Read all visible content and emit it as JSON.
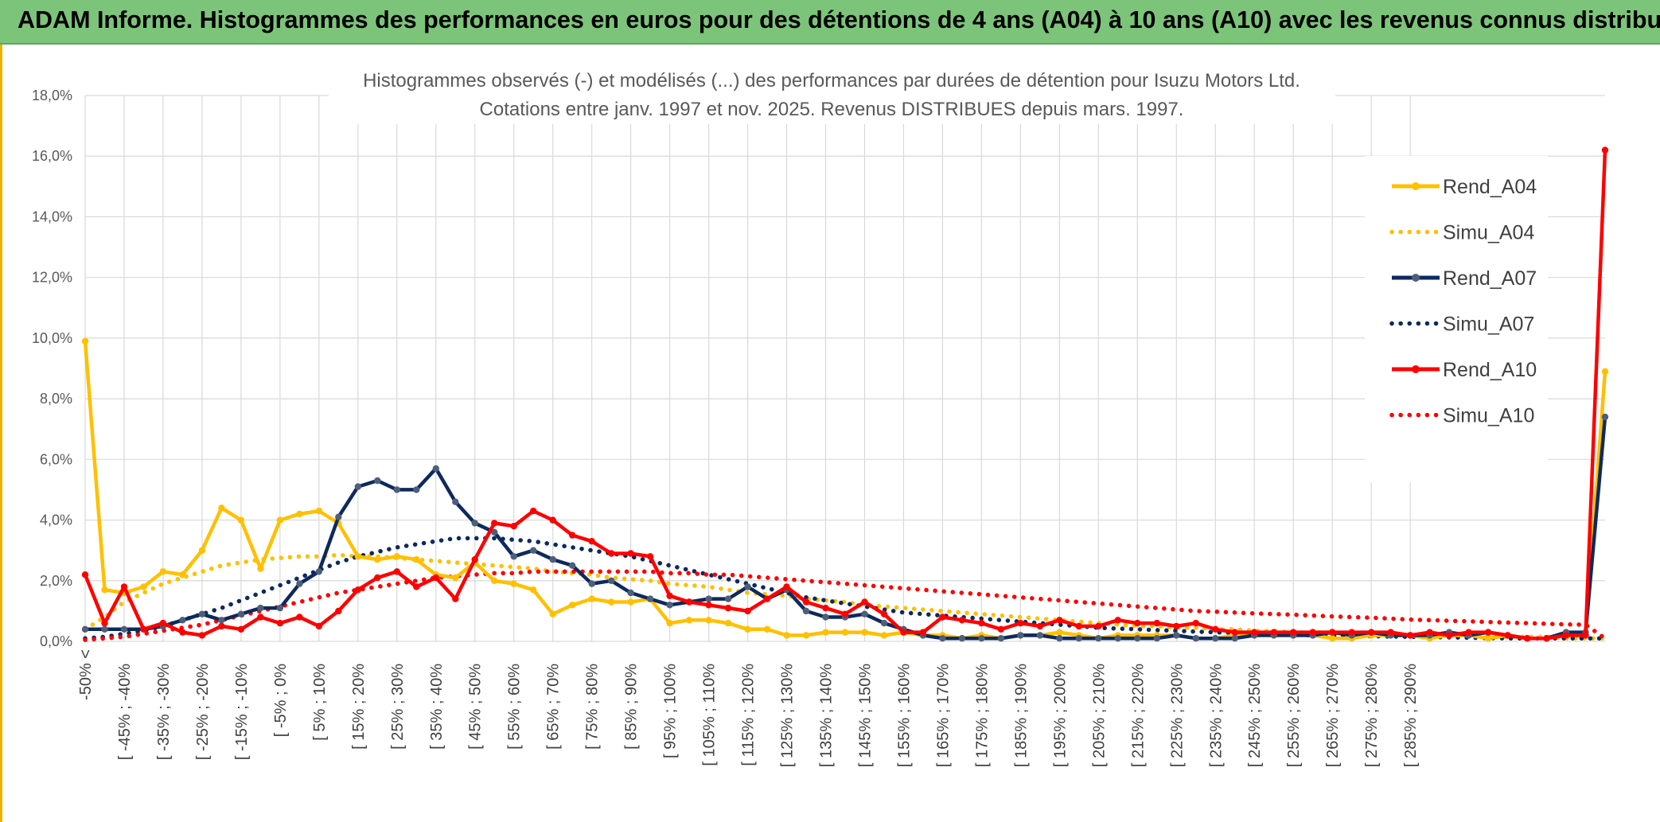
{
  "banner": {
    "title": "ADAM Informe. Histogrammes des performances en euros pour des détentions de 4 ans (A04) à 10 ans (A10) avec les revenus connus distribués"
  },
  "colors": {
    "banner_bg": "#7cc47a",
    "a04": "#ffc000",
    "a07": "#0d2a5e",
    "a07_marker": "#4d5f7a",
    "a10": "#ff0000",
    "grid": "#d9d9d9",
    "axis_text": "#595959"
  },
  "chart_data": {
    "type": "line",
    "title_line1": "Histogrammes observés (-) et modélisés (...) des performances par durées de détention pour Isuzu Motors Ltd.",
    "title_line2": "Cotations entre janv. 1997 et nov. 2025. Revenus DISTRIBUES depuis mars. 1997.",
    "xlabel": "",
    "ylabel": "",
    "ylim": [
      0,
      18
    ],
    "y_ticks": [
      "0,0%",
      "2,0%",
      "4,0%",
      "6,0%",
      "8,0%",
      "10,0%",
      "12,0%",
      "14,0%",
      "16,0%",
      "18,0%"
    ],
    "grid": true,
    "legend_position": "right",
    "x_labels": [
      "-50% <",
      "[ -45% ; -40%",
      "[ -35% ; -30%",
      "[ -25% ; -20%",
      "[ -15% ; -10%",
      "[ -5% ; 0%",
      "[ 5% ; 10%",
      "[ 15% ; 20%",
      "[ 25% ; 30%",
      "[ 35% ; 40%",
      "[ 45% ; 50%",
      "[ 55% ; 60%",
      "[ 65% ; 70%",
      "[ 75% ; 80%",
      "[ 85% ; 90%",
      "[ 95% ; 100%",
      "[ 105% ; 110%",
      "[ 115% ; 120%",
      "[ 125% ; 130%",
      "[ 135% ; 140%",
      "[ 145% ; 150%",
      "[ 155% ; 160%",
      "[ 165% ; 170%",
      "[ 175% ; 180%",
      "[ 185% ; 190%",
      "[ 195% ; 200%",
      "[ 205% ; 210%",
      "[ 215% ; 220%",
      "[ 225% ; 230%",
      "[ 235% ; 240%",
      "[ 245% ; 250%",
      "[ 255% ; 260%",
      "[ 265% ; 270%",
      "[ 275% ; 280%",
      "[ 285% ; 290%"
    ],
    "series": [
      {
        "name": "Rend_A04",
        "style": "solid",
        "color": "#ffc000",
        "values": [
          9.9,
          1.7,
          1.6,
          1.8,
          2.3,
          2.2,
          3.0,
          4.4,
          4.0,
          2.4,
          4.0,
          4.2,
          4.3,
          3.9,
          2.8,
          2.7,
          2.8,
          2.7,
          2.2,
          2.1,
          2.6,
          2.0,
          1.9,
          1.7,
          0.9,
          1.2,
          1.4,
          1.3,
          1.3,
          1.4,
          0.6,
          0.7,
          0.7,
          0.6,
          0.4,
          0.4,
          0.2,
          0.2,
          0.3,
          0.3,
          0.3,
          0.2,
          0.3,
          0.2,
          0.2,
          0.1,
          0.2,
          0.1,
          0.2,
          0.2,
          0.3,
          0.2,
          0.1,
          0.2,
          0.2,
          0.2,
          0.2,
          0.1,
          0.1,
          0.2,
          0.2,
          0.2,
          0.2,
          0.2,
          0.1,
          0.1,
          0.2,
          0.2,
          0.2,
          0.1,
          0.2,
          0.2,
          0.1,
          0.2,
          0.1,
          0.1,
          0.2,
          0.2,
          8.9
        ]
      },
      {
        "name": "Simu_A04",
        "style": "dotted",
        "color": "#ffc000",
        "values": [
          0.4,
          0.8,
          1.3,
          1.6,
          1.9,
          2.1,
          2.3,
          2.5,
          2.6,
          2.7,
          2.75,
          2.8,
          2.8,
          2.85,
          2.8,
          2.8,
          2.75,
          2.7,
          2.65,
          2.6,
          2.55,
          2.5,
          2.45,
          2.4,
          2.3,
          2.25,
          2.2,
          2.1,
          2.05,
          2.0,
          1.9,
          1.85,
          1.8,
          1.7,
          1.6,
          1.55,
          1.5,
          1.4,
          1.35,
          1.3,
          1.2,
          1.15,
          1.1,
          1.05,
          1.0,
          0.95,
          0.9,
          0.85,
          0.8,
          0.75,
          0.7,
          0.65,
          0.6,
          0.55,
          0.5,
          0.5,
          0.45,
          0.45,
          0.4,
          0.4,
          0.35,
          0.35,
          0.3,
          0.3,
          0.3,
          0.25,
          0.25,
          0.25,
          0.2,
          0.2,
          0.2,
          0.2,
          0.15,
          0.15,
          0.15,
          0.15,
          0.1,
          0.1,
          0.1
        ]
      },
      {
        "name": "Rend_A07",
        "style": "solid",
        "color": "#0d2a5e",
        "values": [
          0.4,
          0.4,
          0.4,
          0.4,
          0.5,
          0.7,
          0.9,
          0.7,
          0.9,
          1.1,
          1.1,
          1.9,
          2.3,
          4.1,
          5.1,
          5.3,
          5.0,
          5.0,
          5.7,
          4.6,
          3.9,
          3.6,
          2.8,
          3.0,
          2.7,
          2.5,
          1.9,
          2.0,
          1.6,
          1.4,
          1.2,
          1.3,
          1.4,
          1.4,
          1.8,
          1.4,
          1.7,
          1.0,
          0.8,
          0.8,
          0.9,
          0.6,
          0.4,
          0.2,
          0.1,
          0.1,
          0.1,
          0.1,
          0.2,
          0.2,
          0.1,
          0.1,
          0.1,
          0.1,
          0.1,
          0.1,
          0.2,
          0.1,
          0.1,
          0.1,
          0.2,
          0.2,
          0.2,
          0.2,
          0.3,
          0.2,
          0.3,
          0.2,
          0.2,
          0.2,
          0.3,
          0.2,
          0.3,
          0.2,
          0.1,
          0.1,
          0.3,
          0.3,
          7.4
        ]
      },
      {
        "name": "Simu_A07",
        "style": "dotted",
        "color": "#0d2a5e",
        "values": [
          0.1,
          0.15,
          0.25,
          0.35,
          0.5,
          0.7,
          0.9,
          1.1,
          1.35,
          1.6,
          1.85,
          2.1,
          2.35,
          2.6,
          2.8,
          2.95,
          3.1,
          3.2,
          3.3,
          3.4,
          3.4,
          3.4,
          3.35,
          3.3,
          3.2,
          3.1,
          3.0,
          2.9,
          2.8,
          2.65,
          2.5,
          2.35,
          2.2,
          2.05,
          1.9,
          1.75,
          1.6,
          1.45,
          1.35,
          1.25,
          1.15,
          1.05,
          0.95,
          0.9,
          0.85,
          0.8,
          0.75,
          0.7,
          0.65,
          0.6,
          0.55,
          0.5,
          0.45,
          0.42,
          0.4,
          0.37,
          0.35,
          0.32,
          0.3,
          0.28,
          0.26,
          0.24,
          0.22,
          0.2,
          0.19,
          0.18,
          0.17,
          0.16,
          0.15,
          0.14,
          0.13,
          0.12,
          0.11,
          0.1,
          0.1,
          0.1,
          0.1,
          0.1,
          0.1
        ]
      },
      {
        "name": "Rend_A10",
        "style": "solid",
        "color": "#ff0000",
        "values": [
          2.2,
          0.6,
          1.8,
          0.4,
          0.6,
          0.3,
          0.2,
          0.5,
          0.4,
          0.8,
          0.6,
          0.8,
          0.5,
          1.0,
          1.7,
          2.1,
          2.3,
          1.8,
          2.1,
          1.4,
          2.7,
          3.9,
          3.8,
          4.3,
          4.0,
          3.5,
          3.3,
          2.9,
          2.9,
          2.8,
          1.5,
          1.3,
          1.2,
          1.1,
          1.0,
          1.4,
          1.8,
          1.3,
          1.1,
          0.9,
          1.3,
          0.9,
          0.3,
          0.3,
          0.8,
          0.7,
          0.6,
          0.4,
          0.6,
          0.5,
          0.7,
          0.5,
          0.5,
          0.7,
          0.6,
          0.6,
          0.5,
          0.6,
          0.4,
          0.3,
          0.3,
          0.3,
          0.3,
          0.3,
          0.3,
          0.3,
          0.3,
          0.3,
          0.2,
          0.3,
          0.2,
          0.3,
          0.3,
          0.2,
          0.1,
          0.1,
          0.2,
          0.2,
          16.2
        ]
      },
      {
        "name": "Simu_A10",
        "style": "dotted",
        "color": "#ff0000",
        "values": [
          0.05,
          0.1,
          0.15,
          0.25,
          0.35,
          0.45,
          0.55,
          0.7,
          0.85,
          1.0,
          1.15,
          1.3,
          1.45,
          1.6,
          1.7,
          1.8,
          1.9,
          2.0,
          2.1,
          2.15,
          2.2,
          2.25,
          2.25,
          2.3,
          2.3,
          2.3,
          2.3,
          2.3,
          2.3,
          2.3,
          2.25,
          2.25,
          2.2,
          2.2,
          2.15,
          2.1,
          2.05,
          2.0,
          1.95,
          1.9,
          1.85,
          1.8,
          1.75,
          1.7,
          1.65,
          1.6,
          1.55,
          1.5,
          1.45,
          1.4,
          1.35,
          1.3,
          1.25,
          1.2,
          1.15,
          1.1,
          1.05,
          1.0,
          0.98,
          0.95,
          0.92,
          0.9,
          0.88,
          0.85,
          0.82,
          0.8,
          0.78,
          0.75,
          0.72,
          0.7,
          0.68,
          0.66,
          0.64,
          0.62,
          0.6,
          0.58,
          0.56,
          0.55,
          0.1
        ]
      }
    ]
  }
}
